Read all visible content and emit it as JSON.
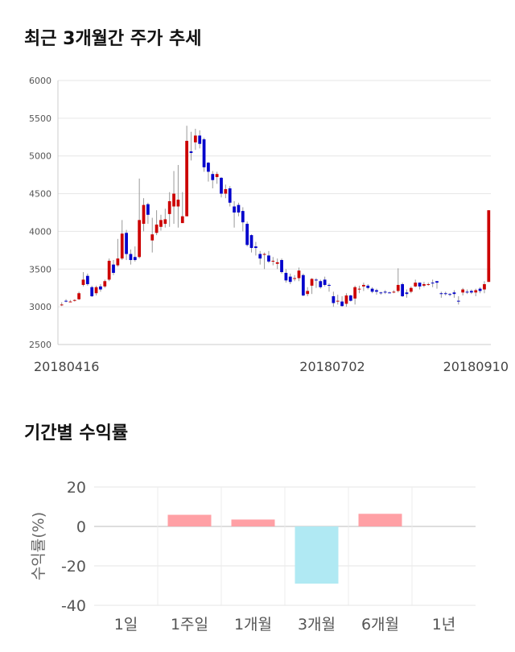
{
  "sections": {
    "price_title": "최근 3개월간 주가 추세",
    "returns_title": "기간별 수익률"
  },
  "chart_data": [
    {
      "type": "candlestick",
      "ylim": [
        2500,
        6000
      ],
      "yticks": [
        2500,
        3000,
        3500,
        4000,
        4500,
        5000,
        5500,
        6000
      ],
      "xtick_labels": [
        "20180416",
        "20180702",
        "20180910"
      ],
      "up_color": "#cc0000",
      "down_color": "#0000cc",
      "candles": [
        [
          3030,
          3030,
          3060,
          3010
        ],
        [
          3080,
          3070,
          3100,
          3060
        ],
        [
          3070,
          3070,
          3090,
          3060
        ],
        [
          3080,
          3090,
          3100,
          3070
        ],
        [
          3100,
          3180,
          3200,
          3090
        ],
        [
          3290,
          3360,
          3460,
          3270
        ],
        [
          3410,
          3300,
          3440,
          3280
        ],
        [
          3260,
          3140,
          3280,
          3130
        ],
        [
          3180,
          3260,
          3280,
          3150
        ],
        [
          3270,
          3230,
          3300,
          3200
        ],
        [
          3270,
          3340,
          3360,
          3250
        ],
        [
          3360,
          3610,
          3640,
          3340
        ],
        [
          3560,
          3450,
          3620,
          3420
        ],
        [
          3550,
          3640,
          3900,
          3530
        ],
        [
          3640,
          3970,
          4150,
          3620
        ],
        [
          3980,
          3700,
          4020,
          3620
        ],
        [
          3700,
          3620,
          3760,
          3560
        ],
        [
          3660,
          3620,
          3800,
          3600
        ],
        [
          3660,
          4150,
          4700,
          3640
        ],
        [
          4100,
          4350,
          4440,
          4000
        ],
        [
          4360,
          4220,
          4380,
          4100
        ],
        [
          3880,
          3960,
          4180,
          3720
        ],
        [
          3980,
          4090,
          4280,
          3950
        ],
        [
          4060,
          4150,
          4220,
          4010
        ],
        [
          4100,
          4160,
          4300,
          4050
        ],
        [
          4230,
          4400,
          4520,
          4060
        ],
        [
          4330,
          4500,
          4800,
          4100
        ],
        [
          4330,
          4420,
          4880,
          4050
        ],
        [
          4110,
          4200,
          4520,
          4110
        ],
        [
          4200,
          5200,
          5400,
          4400
        ],
        [
          5060,
          5040,
          5320,
          4940
        ],
        [
          5180,
          5270,
          5360,
          5080
        ],
        [
          5270,
          5160,
          5340,
          5100
        ],
        [
          5220,
          4850,
          5240,
          4790
        ],
        [
          4910,
          4790,
          4920,
          4660
        ],
        [
          4760,
          4680,
          4800,
          4570
        ],
        [
          4720,
          4760,
          4790,
          4630
        ],
        [
          4710,
          4500,
          4720,
          4450
        ],
        [
          4500,
          4560,
          4620,
          4440
        ],
        [
          4570,
          4380,
          4600,
          4330
        ],
        [
          4330,
          4250,
          4400,
          4050
        ],
        [
          4350,
          4250,
          4380,
          4200
        ],
        [
          4270,
          4120,
          4320,
          4000
        ],
        [
          4100,
          3820,
          4130,
          3800
        ],
        [
          3950,
          3780,
          3960,
          3720
        ],
        [
          3800,
          3780,
          3860,
          3680
        ],
        [
          3700,
          3640,
          3740,
          3560
        ],
        [
          3690,
          3700,
          3720,
          3500
        ],
        [
          3680,
          3600,
          3740,
          3580
        ],
        [
          3600,
          3610,
          3660,
          3550
        ],
        [
          3570,
          3590,
          3640,
          3500
        ],
        [
          3620,
          3460,
          3640,
          3440
        ],
        [
          3450,
          3350,
          3500,
          3320
        ],
        [
          3400,
          3330,
          3440,
          3300
        ],
        [
          3370,
          3380,
          3420,
          3340
        ],
        [
          3380,
          3480,
          3520,
          3340
        ],
        [
          3420,
          3150,
          3440,
          3140
        ],
        [
          3170,
          3210,
          3260,
          3140
        ],
        [
          3280,
          3370,
          3380,
          3170
        ],
        [
          3360,
          3350,
          3380,
          3250
        ],
        [
          3340,
          3260,
          3360,
          3240
        ],
        [
          3360,
          3290,
          3400,
          3270
        ],
        [
          3290,
          3280,
          3310,
          3200
        ],
        [
          3140,
          3050,
          3200,
          3000
        ],
        [
          3080,
          3080,
          3160,
          3030
        ],
        [
          3070,
          3010,
          3140,
          3000
        ],
        [
          3040,
          3150,
          3180,
          3000
        ],
        [
          3150,
          3080,
          3160,
          3070
        ],
        [
          3110,
          3260,
          3280,
          3030
        ],
        [
          3240,
          3240,
          3280,
          3180
        ],
        [
          3270,
          3290,
          3320,
          3210
        ],
        [
          3280,
          3250,
          3300,
          3230
        ],
        [
          3240,
          3200,
          3260,
          3180
        ],
        [
          3220,
          3200,
          3240,
          3160
        ],
        [
          3190,
          3180,
          3200,
          3160
        ],
        [
          3200,
          3190,
          3220,
          3170
        ],
        [
          3190,
          3180,
          3200,
          3180
        ],
        [
          3190,
          3200,
          3220,
          3180
        ],
        [
          3210,
          3290,
          3510,
          3190
        ],
        [
          3300,
          3140,
          3320,
          3130
        ],
        [
          3190,
          3170,
          3230,
          3120
        ],
        [
          3200,
          3250,
          3270,
          3180
        ],
        [
          3270,
          3320,
          3360,
          3260
        ],
        [
          3320,
          3270,
          3320,
          3230
        ],
        [
          3280,
          3300,
          3330,
          3260
        ],
        [
          3300,
          3300,
          3320,
          3280
        ],
        [
          3320,
          3310,
          3360,
          3260
        ],
        [
          3340,
          3320,
          3340,
          3240
        ],
        [
          3180,
          3170,
          3200,
          3120
        ],
        [
          3180,
          3170,
          3200,
          3150
        ],
        [
          3170,
          3160,
          3180,
          3140
        ],
        [
          3190,
          3170,
          3220,
          3120
        ],
        [
          3080,
          3070,
          3140,
          3030
        ],
        [
          3190,
          3230,
          3250,
          3150
        ],
        [
          3200,
          3190,
          3230,
          3170
        ],
        [
          3210,
          3190,
          3230,
          3170
        ],
        [
          3190,
          3220,
          3240,
          3140
        ],
        [
          3240,
          3210,
          3260,
          3180
        ],
        [
          3230,
          3300,
          3340,
          3180
        ],
        [
          3330,
          4280,
          4280,
          3330
        ]
      ]
    },
    {
      "type": "bar",
      "categories": [
        "1일",
        "1주일",
        "1개월",
        "3개월",
        "6개월",
        "1년"
      ],
      "values": [
        0,
        5.9,
        3.5,
        -29.0,
        6.4,
        0
      ],
      "ylabel": "수익률(%)",
      "ylim": [
        -40,
        20
      ],
      "yticks": [
        -40,
        -20,
        0,
        20
      ],
      "positive_color": "#ffa0a5",
      "negative_color": "#b0e9f3"
    }
  ]
}
